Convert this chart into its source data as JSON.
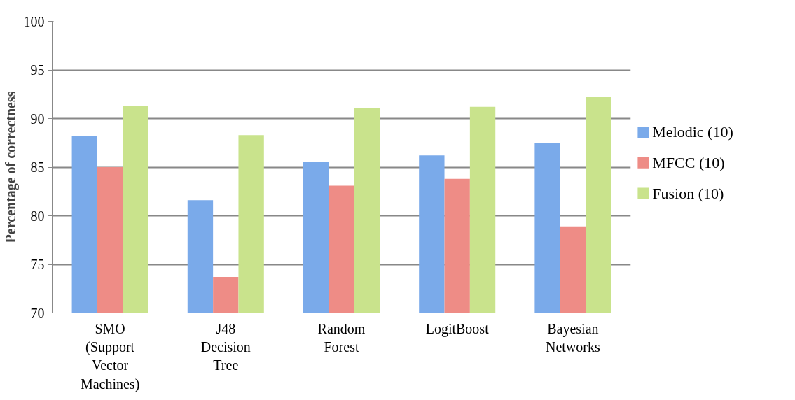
{
  "chart_data": {
    "type": "bar",
    "ylabel": "Percentage of correctness",
    "categories": [
      "SMO (Support Vector Machines)",
      "J48 Decision Tree",
      "Random Forest",
      "LogitBoost",
      "Bayesian Networks"
    ],
    "series": [
      {
        "name": "Melodic (10)",
        "color": "#7aaaea",
        "values": [
          88.2,
          81.6,
          85.5,
          86.2,
          87.5
        ]
      },
      {
        "name": "MFCC (10)",
        "color": "#ee8c86",
        "values": [
          85.0,
          73.7,
          83.1,
          83.8,
          78.9
        ]
      },
      {
        "name": "Fusion (10)",
        "color": "#c9e38c",
        "values": [
          91.3,
          88.3,
          91.1,
          91.2,
          92.2
        ]
      }
    ],
    "ylim": [
      70,
      100
    ],
    "yticks": [
      70,
      75,
      80,
      85,
      90,
      95,
      100
    ],
    "grid": "y",
    "legend": "right"
  }
}
